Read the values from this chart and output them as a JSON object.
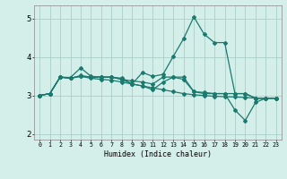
{
  "xlabel": "Humidex (Indice chaleur)",
  "xlim": [
    -0.5,
    23.5
  ],
  "ylim": [
    1.85,
    5.35
  ],
  "yticks": [
    2,
    3,
    4,
    5
  ],
  "xticks": [
    0,
    1,
    2,
    3,
    4,
    5,
    6,
    7,
    8,
    9,
    10,
    11,
    12,
    13,
    14,
    15,
    16,
    17,
    18,
    19,
    20,
    21,
    22,
    23
  ],
  "bg_color": "#d4eeea",
  "grid_color": "#aacfc8",
  "line_color": "#1a7a6e",
  "lines": [
    [
      3.0,
      3.05,
      3.48,
      3.47,
      3.72,
      3.5,
      3.48,
      3.48,
      3.42,
      3.3,
      3.6,
      3.5,
      3.55,
      4.02,
      4.48,
      5.05,
      4.6,
      4.38,
      4.38,
      3.05,
      3.05,
      2.93,
      2.93,
      2.93
    ],
    [
      3.0,
      3.05,
      3.48,
      3.45,
      3.52,
      3.48,
      3.48,
      3.48,
      3.45,
      3.3,
      3.25,
      3.15,
      3.35,
      3.48,
      3.48,
      3.1,
      3.05,
      3.05,
      3.05,
      2.62,
      2.35,
      2.82,
      2.93,
      2.93
    ],
    [
      3.0,
      3.05,
      3.48,
      3.45,
      3.5,
      3.48,
      3.48,
      3.48,
      3.42,
      3.38,
      3.35,
      3.3,
      3.48,
      3.48,
      3.42,
      3.1,
      3.08,
      3.05,
      3.05,
      3.05,
      3.05,
      2.93,
      2.93,
      2.93
    ],
    [
      3.0,
      3.05,
      3.48,
      3.45,
      3.5,
      3.45,
      3.42,
      3.4,
      3.35,
      3.3,
      3.25,
      3.2,
      3.15,
      3.1,
      3.05,
      3.02,
      3.0,
      2.98,
      2.97,
      2.96,
      2.95,
      2.93,
      2.93,
      2.93
    ]
  ]
}
